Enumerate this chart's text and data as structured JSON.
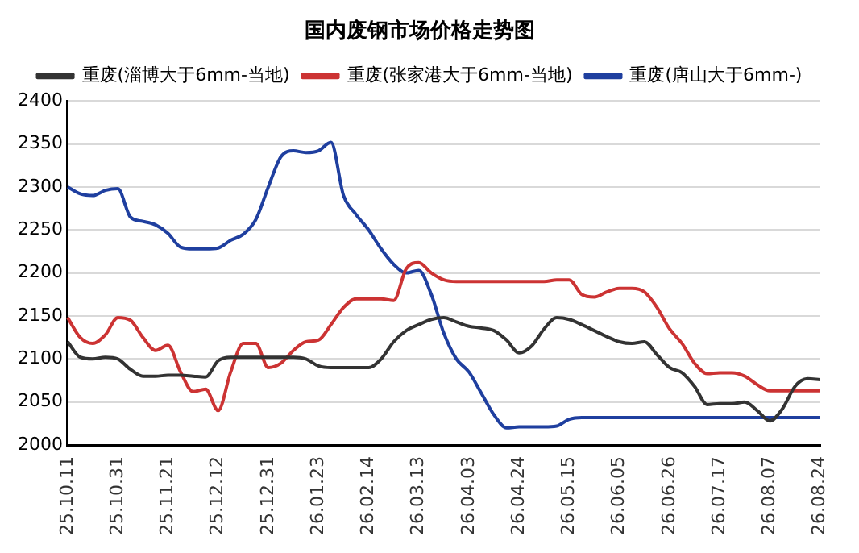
{
  "chart_data": {
    "type": "line",
    "title": "国内废钢市场价格走势图",
    "categories": [
      "25.10.11",
      null,
      null,
      null,
      "25.10.31",
      null,
      null,
      null,
      "25.11.21",
      null,
      null,
      null,
      "25.12.12",
      null,
      null,
      null,
      "25.12.31",
      null,
      null,
      null,
      "26.01.23",
      null,
      null,
      null,
      "26.02.14",
      null,
      null,
      null,
      "26.03.13",
      null,
      null,
      null,
      "26.04.03",
      null,
      null,
      null,
      "26.04.24",
      null,
      null,
      null,
      "26.05.15",
      null,
      null,
      null,
      "26.06.05",
      null,
      null,
      null,
      "26.06.26",
      null,
      null,
      null,
      "26.07.17",
      null,
      null,
      null,
      "26.08.07",
      null,
      null,
      null,
      "26.08.24"
    ],
    "series": [
      {
        "name": "重废(淄博大于6mm-当地)",
        "color": "#333333",
        "values": [
          2120,
          2102,
          2100,
          2102,
          2100,
          2088,
          2080,
          2080,
          2081,
          2081,
          2080,
          2079,
          2098,
          2102,
          2102,
          2102,
          2102,
          2102,
          2102,
          2100,
          2092,
          2090,
          2090,
          2090,
          2090,
          2100,
          2120,
          2133,
          2140,
          2146,
          2148,
          2143,
          2138,
          2136,
          2133,
          2122,
          2107,
          2115,
          2135,
          2148,
          2146,
          2140,
          2133,
          2126,
          2120,
          2118,
          2120,
          2105,
          2090,
          2084,
          2068,
          2047,
          2048,
          2048,
          2050,
          2040,
          2028,
          2042,
          2068,
          2077,
          2076
        ]
      },
      {
        "name": "重废(张家港大于6mm-当地)",
        "color": "#cc3333",
        "values": [
          2148,
          2125,
          2118,
          2128,
          2148,
          2145,
          2125,
          2110,
          2116,
          2085,
          2062,
          2065,
          2040,
          2085,
          2118,
          2118,
          2090,
          2095,
          2110,
          2120,
          2122,
          2140,
          2160,
          2170,
          2170,
          2170,
          2168,
          2205,
          2212,
          2200,
          2192,
          2190,
          2190,
          2190,
          2190,
          2190,
          2190,
          2190,
          2190,
          2192,
          2192,
          2175,
          2172,
          2178,
          2182,
          2182,
          2178,
          2160,
          2135,
          2118,
          2095,
          2083,
          2084,
          2084,
          2080,
          2070,
          2063,
          2063,
          2063,
          2063,
          2063
        ]
      },
      {
        "name": "重废(唐山大于6mm-)",
        "color": "#1f3f9f",
        "values": [
          2300,
          2292,
          2290,
          2296,
          2298,
          2265,
          2260,
          2256,
          2246,
          2230,
          2228,
          2228,
          2229,
          2238,
          2245,
          2262,
          2300,
          2335,
          2342,
          2340,
          2342,
          2352,
          2290,
          2268,
          2250,
          2228,
          2210,
          2200,
          2203,
          2175,
          2130,
          2100,
          2085,
          2060,
          2035,
          2020,
          2021,
          2021,
          2021,
          2022,
          2030,
          2032,
          2032,
          2032,
          2032,
          2032,
          2032,
          2032,
          2032,
          2032,
          2032,
          2032,
          2032,
          2032,
          2032,
          2032,
          2032,
          2032,
          2032,
          2032,
          2032
        ]
      }
    ],
    "ylim": [
      2000,
      2400
    ],
    "yticks": [
      2000,
      2050,
      2100,
      2150,
      2200,
      2250,
      2300,
      2350,
      2400
    ],
    "grid": "y",
    "legend": "top",
    "marker": "none",
    "line_style": "solid"
  }
}
